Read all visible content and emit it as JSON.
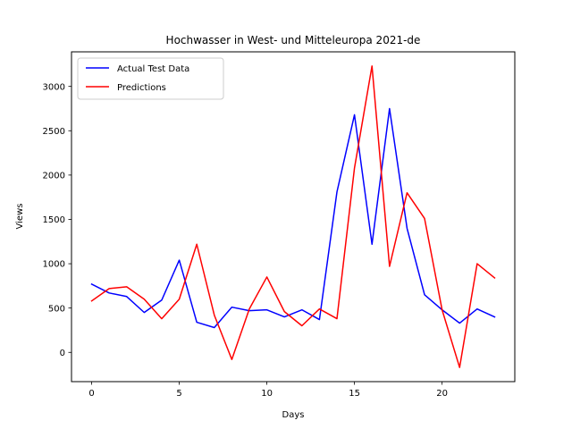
{
  "chart_data": {
    "type": "line",
    "title": "Hochwasser in West- und Mitteleuropa 2021-de",
    "xlabel": "Days",
    "ylabel": "Views",
    "x": [
      0,
      1,
      2,
      3,
      4,
      5,
      6,
      7,
      8,
      9,
      10,
      11,
      12,
      13,
      14,
      15,
      16,
      17,
      18,
      19,
      20,
      21,
      22,
      23
    ],
    "xlim": [
      -1.15,
      24.15
    ],
    "ylim": [
      -330,
      3390
    ],
    "xticks": [
      0,
      5,
      10,
      15,
      20
    ],
    "yticks": [
      0,
      500,
      1000,
      1500,
      2000,
      2500,
      3000
    ],
    "grid": false,
    "legend_position": "upper left",
    "series": [
      {
        "name": "Actual Test Data",
        "color": "#0000ff",
        "values": [
          770,
          670,
          630,
          450,
          590,
          1040,
          340,
          280,
          510,
          470,
          480,
          400,
          480,
          370,
          1810,
          2680,
          1220,
          2750,
          1400,
          650,
          480,
          330,
          490,
          400
        ]
      },
      {
        "name": "Predictions",
        "color": "#ff0000",
        "values": [
          580,
          720,
          740,
          600,
          380,
          600,
          1220,
          420,
          -80,
          490,
          850,
          460,
          300,
          490,
          380,
          2080,
          3230,
          970,
          1800,
          1510,
          480,
          -170,
          1000,
          840
        ]
      }
    ]
  }
}
